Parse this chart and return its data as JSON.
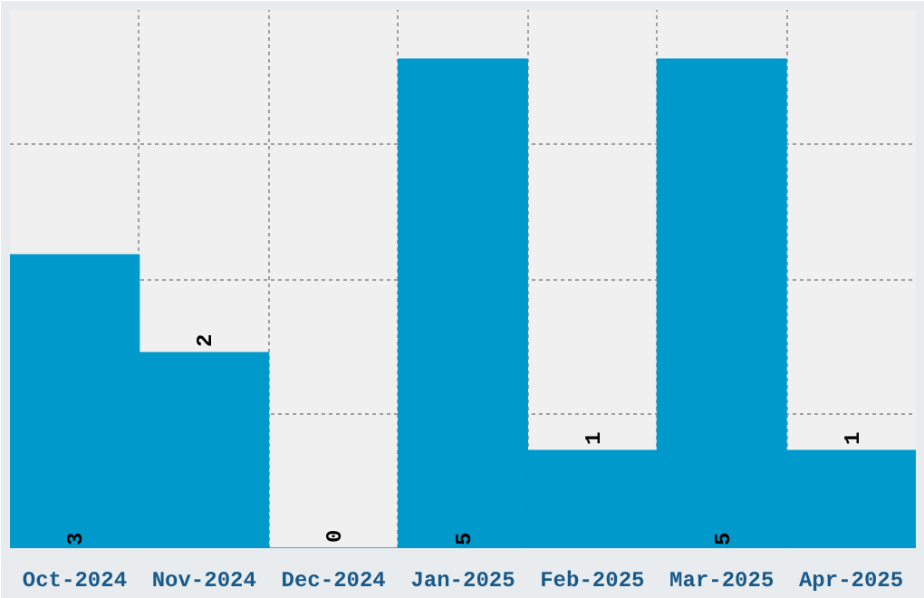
{
  "chart_data": {
    "type": "bar",
    "categories": [
      "Oct-2024",
      "Nov-2024",
      "Dec-2024",
      "Jan-2025",
      "Feb-2025",
      "Mar-2025",
      "Apr-2025"
    ],
    "values": [
      3,
      2,
      0,
      5,
      1,
      5,
      1
    ],
    "color": "#0099cc",
    "ylim": [
      0,
      5.5
    ],
    "tick_labels": "x",
    "grid": true,
    "data_labels": true
  }
}
